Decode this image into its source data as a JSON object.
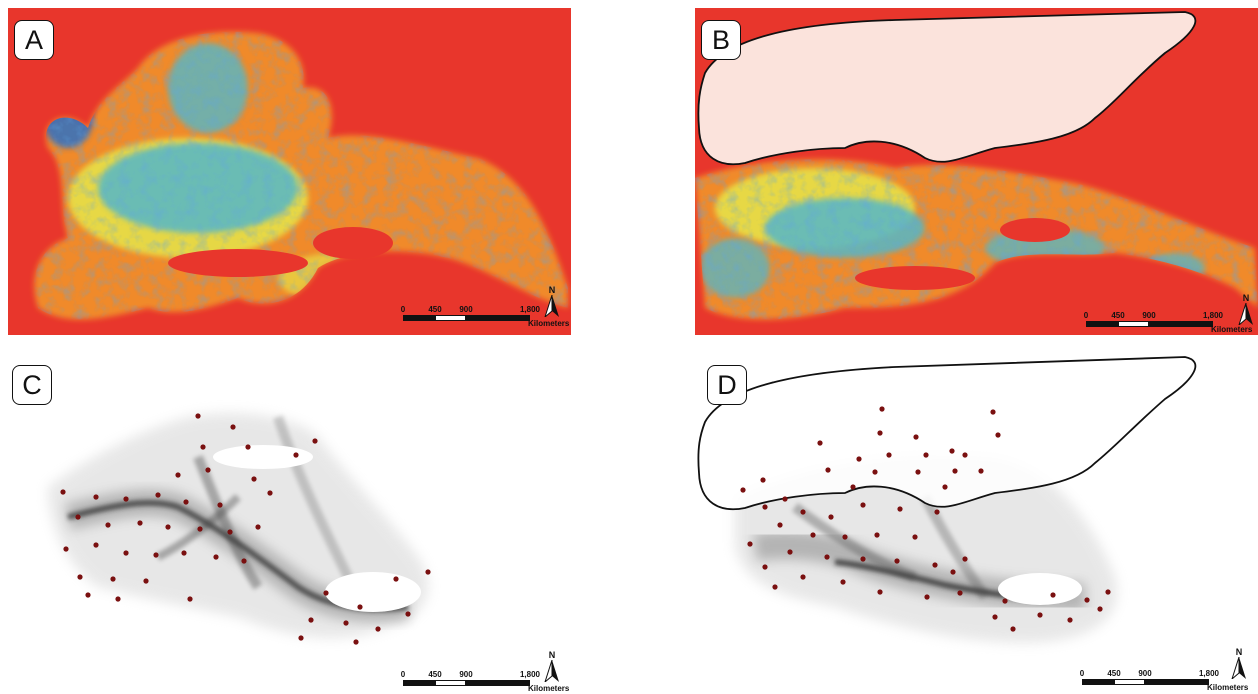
{
  "panels": [
    {
      "id": "A",
      "label": "A"
    },
    {
      "id": "B",
      "label": "B"
    },
    {
      "id": "C",
      "label": "C"
    },
    {
      "id": "D",
      "label": "D"
    }
  ],
  "scale_bar": {
    "ticks": [
      "0",
      "450",
      "900",
      "1,800"
    ],
    "unit": "Kilometers"
  },
  "north_arrow": {
    "label": "N",
    "icon": "north-arrow-icon"
  },
  "colors": {
    "background_red": "#e8362c",
    "cold_blue": "#1f5fbf",
    "warm_yellow": "#e6e04a",
    "mid_cyan": "#55b8c8",
    "ice_sheet_fill": "#fbe3dc",
    "site_dot": "#7a1010",
    "corridor_gray": "#2a2a2a"
  }
}
